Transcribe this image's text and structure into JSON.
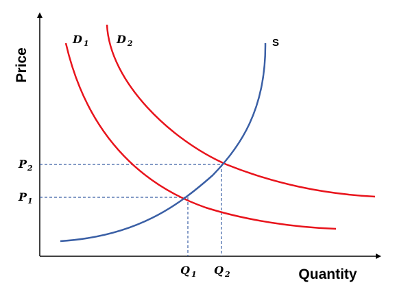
{
  "axes": {
    "y_title": "Price",
    "x_title": "Quantity"
  },
  "curves": {
    "d1": {
      "letter": "D",
      "sub": "1"
    },
    "d2": {
      "letter": "D",
      "sub": "2"
    },
    "s": {
      "label": "S"
    }
  },
  "ticks": {
    "p1": {
      "letter": "P",
      "sub": "1"
    },
    "p2": {
      "letter": "P",
      "sub": "2"
    },
    "q1": {
      "letter": "Q",
      "sub": "1"
    },
    "q2": {
      "letter": "Q",
      "sub": "2"
    }
  },
  "colors": {
    "demand": "#e8141c",
    "supply": "#3a5fa5",
    "guide": "#3a5fa5",
    "axis": "#000000"
  }
}
